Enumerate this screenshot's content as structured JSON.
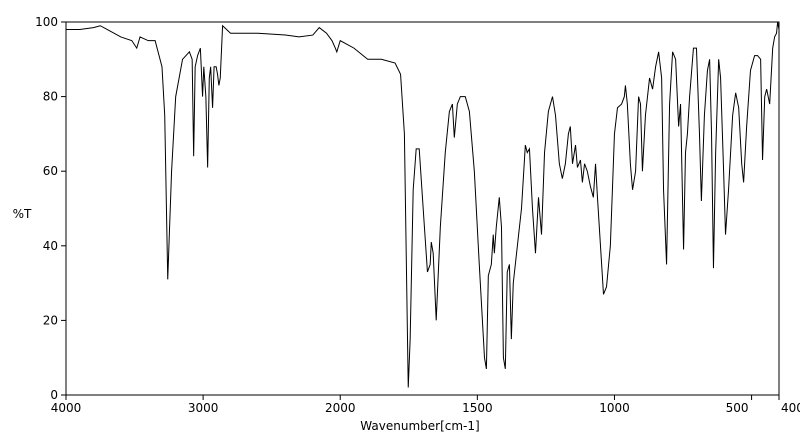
{
  "chart_data": {
    "type": "line",
    "xlabel": "Wavenumber[cm-1]",
    "ylabel": "%T",
    "xlim": [
      4000,
      400
    ],
    "ylim": [
      0,
      100
    ],
    "x_scale_break": 2000,
    "xticks": [
      4000,
      3000,
      2000,
      1500,
      1000,
      500,
      400
    ],
    "yticks": [
      0,
      20,
      40,
      60,
      80,
      100
    ],
    "series": [
      {
        "color": "#000000",
        "x": [
          4000,
          3900,
          3800,
          3750,
          3700,
          3600,
          3520,
          3484,
          3460,
          3400,
          3350,
          3300,
          3280,
          3258,
          3230,
          3200,
          3150,
          3100,
          3080,
          3069,
          3058,
          3040,
          3020,
          3004,
          2995,
          2980,
          2967,
          2955,
          2945,
          2931,
          2920,
          2905,
          2895,
          2885,
          2875,
          2858,
          2800,
          2600,
          2400,
          2300,
          2200,
          2153,
          2100,
          2060,
          2036,
          2025,
          2000,
          1950,
          1900,
          1850,
          1800,
          1780,
          1766,
          1752,
          1745,
          1734,
          1723,
          1712,
          1693,
          1682,
          1672,
          1668,
          1661,
          1650,
          1635,
          1617,
          1602,
          1591,
          1584,
          1573,
          1562,
          1544,
          1529,
          1511,
          1493,
          1474,
          1467,
          1460,
          1449,
          1442,
          1438,
          1431,
          1420,
          1412,
          1405,
          1398,
          1391,
          1383,
          1376,
          1369,
          1354,
          1339,
          1325,
          1318,
          1310,
          1299,
          1288,
          1277,
          1266,
          1255,
          1241,
          1226,
          1215,
          1201,
          1190,
          1179,
          1168,
          1161,
          1153,
          1142,
          1135,
          1124,
          1117,
          1109,
          1099,
          1088,
          1077,
          1069,
          1062,
          1051,
          1040,
          1029,
          1015,
          1000,
          989,
          974,
          964,
          960,
          953,
          942,
          934,
          923,
          912,
          905,
          898,
          887,
          872,
          861,
          850,
          839,
          828,
          821,
          810,
          799,
          788,
          777,
          766,
          759,
          748,
          741,
          734,
          726,
          712,
          701,
          690,
          683,
          672,
          661,
          653,
          646,
          639,
          631,
          620,
          613,
          602,
          595,
          584,
          569,
          558,
          547,
          536,
          529,
          518,
          504,
          489,
          478,
          467,
          460,
          452,
          445,
          434,
          423,
          416,
          409,
          405,
          400
        ],
        "values": [
          98,
          98,
          98.5,
          99,
          98,
          96,
          95,
          93,
          96,
          95,
          95,
          88,
          75,
          31,
          60,
          80,
          90,
          92,
          90,
          64,
          88,
          91,
          93,
          80,
          88,
          80,
          61,
          85,
          88,
          77,
          88,
          88,
          86,
          83,
          85,
          99,
          97,
          97,
          96.5,
          96,
          96.5,
          98.5,
          97,
          95,
          93,
          92,
          95,
          93,
          90,
          90,
          89,
          86,
          70,
          2,
          15,
          55,
          66,
          66,
          45,
          33,
          35,
          41,
          38,
          20,
          45,
          65,
          76,
          78,
          69,
          78,
          80,
          80,
          76,
          60,
          35,
          10,
          7,
          32,
          35,
          43,
          38,
          45,
          53,
          45,
          10,
          7,
          33,
          35,
          15,
          30,
          40,
          50,
          67,
          65,
          66,
          50,
          38,
          53,
          43,
          65,
          76,
          80,
          75,
          62,
          58,
          62,
          70,
          72,
          62,
          67,
          61,
          63,
          57,
          62,
          60,
          56,
          53,
          62,
          53,
          40,
          27,
          29,
          40,
          70,
          77,
          78,
          80,
          83,
          78,
          62,
          55,
          60,
          80,
          78,
          60,
          75,
          85,
          82,
          88,
          92,
          85,
          55,
          35,
          78,
          92,
          90,
          72,
          78,
          39,
          65,
          70,
          80,
          93,
          93,
          70,
          52,
          75,
          87,
          90,
          70,
          34,
          65,
          90,
          85,
          60,
          43,
          55,
          75,
          81,
          77,
          62,
          57,
          72,
          87,
          91,
          91,
          90,
          63,
          80,
          82,
          78,
          93,
          96,
          97,
          100,
          98
        ]
      }
    ]
  }
}
